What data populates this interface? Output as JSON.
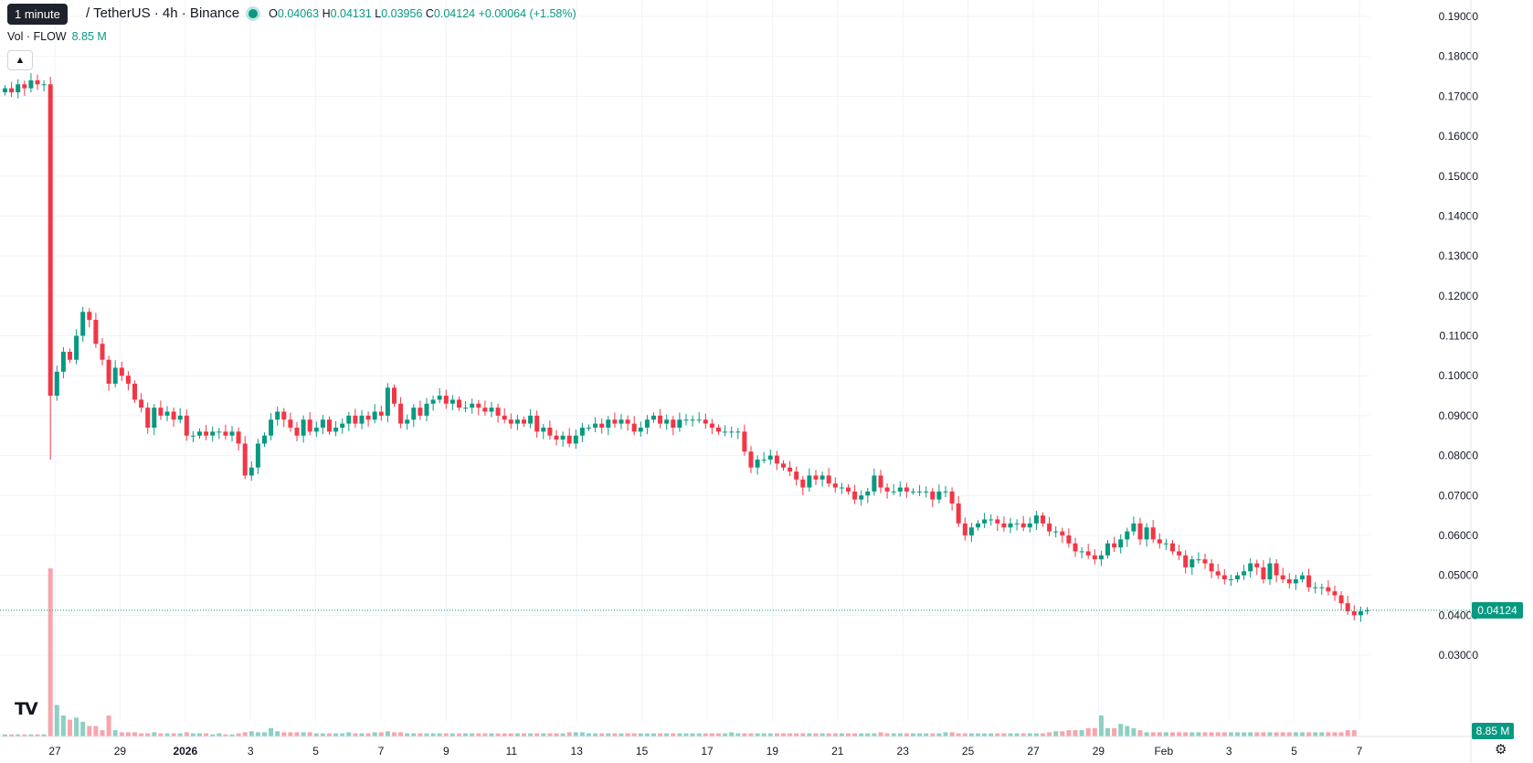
{
  "tooltip": "1 minute",
  "title": "/ TetherUS · 4h · Binance",
  "ohlc": {
    "o_label": "O",
    "o": "0.04063",
    "h_label": "H",
    "h": "0.04131",
    "l_label": "L",
    "l": "0.03956",
    "c_label": "C",
    "c": "0.04124",
    "change": "+0.00064 (+1.58%)"
  },
  "volume_legend": {
    "label": "Vol · FLOW",
    "value": "8.85 M"
  },
  "price_badge": "0.04124",
  "volume_badge": "8.85 M",
  "icons": {
    "collapse": "chevron-up-icon",
    "logo": "tradingview-logo-icon",
    "settings": "gear-icon"
  },
  "colors": {
    "up": "#089981",
    "down": "#f23645",
    "up_vol": "#8dd0c4",
    "down_vol": "#f7a5ac",
    "grid": "#f0f3fa",
    "text": "#131722"
  },
  "chart_data": {
    "type": "candlestick",
    "ylim": [
      0.025,
      0.19
    ],
    "y_ticks": [
      "0.19000",
      "0.18000",
      "0.17000",
      "0.16000",
      "0.15000",
      "0.14000",
      "0.13000",
      "0.12000",
      "0.11000",
      "0.10000",
      "0.09000",
      "0.08000",
      "0.07000",
      "0.06000",
      "0.05000",
      "0.04000",
      "0.03000"
    ],
    "x_ticks": [
      {
        "label": "27",
        "bold": false
      },
      {
        "label": "29",
        "bold": false
      },
      {
        "label": "2026",
        "bold": true
      },
      {
        "label": "3",
        "bold": false
      },
      {
        "label": "5",
        "bold": false
      },
      {
        "label": "7",
        "bold": false
      },
      {
        "label": "9",
        "bold": false
      },
      {
        "label": "11",
        "bold": false
      },
      {
        "label": "13",
        "bold": false
      },
      {
        "label": "15",
        "bold": false
      },
      {
        "label": "17",
        "bold": false
      },
      {
        "label": "19",
        "bold": false
      },
      {
        "label": "21",
        "bold": false
      },
      {
        "label": "23",
        "bold": false
      },
      {
        "label": "25",
        "bold": false
      },
      {
        "label": "27",
        "bold": false
      },
      {
        "label": "29",
        "bold": false
      },
      {
        "label": "Feb",
        "bold": false
      },
      {
        "label": "3",
        "bold": false
      },
      {
        "label": "5",
        "bold": false
      },
      {
        "label": "7",
        "bold": false
      }
    ],
    "last_price": 0.04124,
    "closes": [
      0.172,
      0.171,
      0.173,
      0.172,
      0.174,
      0.173,
      0.173,
      0.095,
      0.101,
      0.106,
      0.104,
      0.11,
      0.116,
      0.114,
      0.108,
      0.104,
      0.098,
      0.102,
      0.1,
      0.098,
      0.094,
      0.092,
      0.087,
      0.092,
      0.09,
      0.091,
      0.089,
      0.09,
      0.085,
      0.085,
      0.086,
      0.085,
      0.086,
      0.086,
      0.085,
      0.086,
      0.083,
      0.075,
      0.077,
      0.083,
      0.085,
      0.089,
      0.091,
      0.089,
      0.087,
      0.085,
      0.089,
      0.086,
      0.087,
      0.089,
      0.086,
      0.087,
      0.088,
      0.09,
      0.088,
      0.09,
      0.089,
      0.091,
      0.09,
      0.097,
      0.093,
      0.088,
      0.089,
      0.092,
      0.09,
      0.093,
      0.094,
      0.095,
      0.093,
      0.094,
      0.092,
      0.092,
      0.093,
      0.092,
      0.091,
      0.092,
      0.09,
      0.089,
      0.088,
      0.089,
      0.088,
      0.09,
      0.086,
      0.087,
      0.085,
      0.084,
      0.085,
      0.083,
      0.085,
      0.087,
      0.087,
      0.088,
      0.087,
      0.089,
      0.088,
      0.089,
      0.088,
      0.086,
      0.087,
      0.089,
      0.09,
      0.088,
      0.089,
      0.087,
      0.089,
      0.089,
      0.089,
      0.089,
      0.088,
      0.087,
      0.086,
      0.086,
      0.086,
      0.086,
      0.081,
      0.077,
      0.079,
      0.079,
      0.08,
      0.078,
      0.077,
      0.076,
      0.074,
      0.072,
      0.075,
      0.074,
      0.075,
      0.073,
      0.072,
      0.072,
      0.071,
      0.069,
      0.07,
      0.071,
      0.075,
      0.072,
      0.071,
      0.071,
      0.072,
      0.071,
      0.071,
      0.071,
      0.071,
      0.069,
      0.071,
      0.071,
      0.068,
      0.063,
      0.06,
      0.062,
      0.063,
      0.064,
      0.064,
      0.063,
      0.062,
      0.063,
      0.063,
      0.062,
      0.063,
      0.065,
      0.063,
      0.061,
      0.061,
      0.06,
      0.058,
      0.056,
      0.056,
      0.055,
      0.054,
      0.055,
      0.058,
      0.057,
      0.059,
      0.061,
      0.063,
      0.059,
      0.062,
      0.059,
      0.058,
      0.058,
      0.056,
      0.055,
      0.052,
      0.054,
      0.054,
      0.053,
      0.051,
      0.05,
      0.049,
      0.049,
      0.05,
      0.051,
      0.053,
      0.052,
      0.049,
      0.053,
      0.05,
      0.049,
      0.048,
      0.049,
      0.05,
      0.047,
      0.047,
      0.047,
      0.046,
      0.045,
      0.043,
      0.041,
      0.04,
      0.041,
      0.04124
    ],
    "volumes": [
      1,
      1,
      1,
      1,
      1,
      1,
      1,
      80,
      15,
      10,
      8,
      9,
      7,
      5,
      5,
      3,
      10,
      3,
      2,
      2,
      2,
      1.5,
      1.5,
      2,
      1.5,
      1.5,
      1.5,
      1.5,
      2,
      1.5,
      1.5,
      1.5,
      1,
      1.5,
      1,
      1,
      1.5,
      2,
      2.5,
      2,
      2,
      4,
      2.5,
      2,
      2,
      2,
      2,
      2,
      1.5,
      1.5,
      1.5,
      1.5,
      1.5,
      2,
      1.5,
      1.5,
      1.5,
      2,
      2,
      2.5,
      2,
      2,
      1.5,
      1.5,
      1.5,
      1.5,
      1.5,
      1.5,
      1.5,
      1.5,
      1.5,
      1.5,
      1.5,
      1.5,
      1.5,
      1.5,
      1.5,
      1.5,
      1.5,
      1.5,
      1.5,
      1.5,
      1.5,
      1.5,
      1.5,
      1.5,
      1.5,
      2,
      2,
      2,
      1.5,
      1.5,
      1.5,
      1.5,
      1.5,
      1.5,
      1.5,
      1.5,
      1.5,
      1.5,
      1.5,
      1.5,
      1.5,
      1.5,
      1.5,
      1.5,
      1.5,
      1.5,
      1.5,
      1.5,
      1.5,
      1.5,
      2,
      1.5,
      1.5,
      1.5,
      1.5,
      1.5,
      1.5,
      1.5,
      1.5,
      1.5,
      1.5,
      1.5,
      1.5,
      1.5,
      1.5,
      1.5,
      1.5,
      1.5,
      1.5,
      1.5,
      1.5,
      1.5,
      1.5,
      2,
      1.5,
      1.5,
      1.5,
      1.5,
      1.5,
      1.5,
      1.5,
      1.5,
      1.5,
      2,
      2,
      1.5,
      1.5,
      1.5,
      1.5,
      1.5,
      1.5,
      1.5,
      1.5,
      1.5,
      1.5,
      1.5,
      1.5,
      1.5,
      1.5,
      2,
      2.5,
      2.5,
      3,
      3,
      3,
      4,
      4,
      10,
      4,
      4,
      6,
      5,
      4,
      3,
      2,
      2,
      2,
      2,
      2,
      2,
      2,
      2,
      2,
      2,
      2,
      2,
      2,
      2,
      2,
      2,
      2,
      2,
      2,
      2,
      2,
      2,
      2,
      2,
      2,
      2,
      2,
      2,
      2,
      2,
      2,
      3,
      3
    ]
  }
}
